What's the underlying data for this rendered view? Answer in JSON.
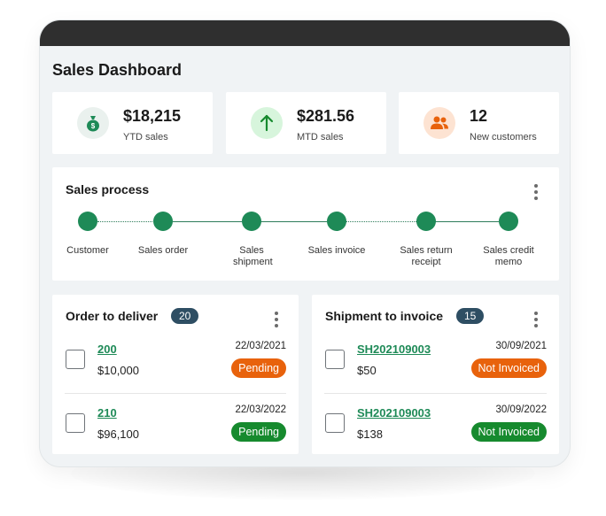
{
  "page_title": "Sales Dashboard",
  "colors": {
    "accent_green": "#1e8a57",
    "pending": "#e8620c",
    "not_invoiced": "#e8620c",
    "status_green": "#168a2e",
    "count_badge": "#2e4e63"
  },
  "kpis": [
    {
      "value": "$18,215",
      "label": "YTD sales",
      "icon": "money-bag-icon"
    },
    {
      "value": "$281.56",
      "label": "MTD sales",
      "icon": "arrow-up-icon"
    },
    {
      "value": "12",
      "label": "New customers",
      "icon": "users-icon"
    }
  ],
  "sales_process": {
    "title": "Sales process",
    "steps": [
      "Customer",
      "Sales order",
      "Sales shipment",
      "Sales invoice",
      "Sales return receipt",
      "Sales credit memo"
    ]
  },
  "order_to_deliver": {
    "title": "Order to deliver",
    "count": "20",
    "rows": [
      {
        "id": "200",
        "amount": "$10,000",
        "date": "22/03/2021",
        "status": "Pending",
        "status_color": "#e8620c"
      },
      {
        "id": "210",
        "amount": "$96,100",
        "date": "22/03/2022",
        "status": "Pending",
        "status_color": "#168a2e"
      }
    ]
  },
  "shipment_to_invoice": {
    "title": "Shipment to invoice",
    "count": "15",
    "rows": [
      {
        "id": "SH202109003",
        "amount": "$50",
        "date": "30/09/2021",
        "status": "Not Invoiced",
        "status_color": "#e8620c"
      },
      {
        "id": "SH202109003",
        "amount": "$138",
        "date": "30/09/2022",
        "status": "Not Invoiced",
        "status_color": "#168a2e"
      }
    ]
  }
}
